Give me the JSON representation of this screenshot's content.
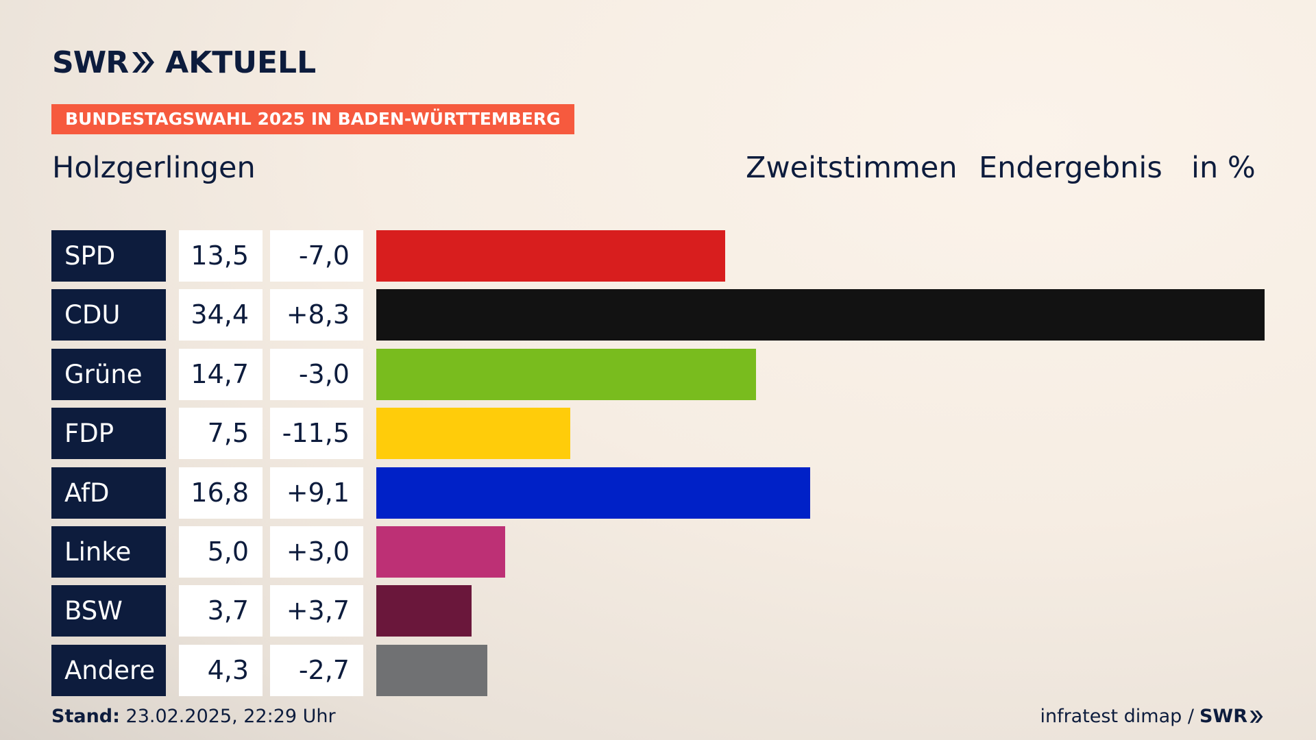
{
  "header": {
    "logo_left": "SWR",
    "logo_right": "AKTUELL",
    "tag": "BUNDESTAGSWAHL 2025 IN BADEN-WÜRTTEMBERG",
    "place": "Holzgerlingen",
    "vote_type": "Zweitstimmen",
    "status": "Endergebnis",
    "unit": "in %"
  },
  "chart_data": {
    "type": "bar",
    "orientation": "horizontal",
    "categories": [
      "SPD",
      "CDU",
      "Grüne",
      "FDP",
      "AfD",
      "Linke",
      "BSW",
      "Andere"
    ],
    "values": [
      "13,5",
      "34,4",
      "14,7",
      "7,5",
      "16,8",
      "5,0",
      "3,7",
      "4,3"
    ],
    "numeric_values": [
      13.5,
      34.4,
      14.7,
      7.5,
      16.8,
      5.0,
      3.7,
      4.3
    ],
    "differences": [
      "-7,0",
      "+8,3",
      "-3,0",
      "-11,5",
      "+9,1",
      "+3,0",
      "+3,7",
      "-2,7"
    ],
    "colors": [
      "#d81e1e",
      "#121212",
      "#79bc1e",
      "#ffcc0a",
      "#0021c7",
      "#bd3075",
      "#6a173b",
      "#707173"
    ],
    "xlim": [
      0,
      34.4
    ]
  },
  "footer": {
    "stand_label": "Stand:",
    "stand_value": "23.02.2025, 22:29 Uhr",
    "source": "infratest dimap /",
    "source_brand": "SWR"
  },
  "icons": {
    "logo_chevrons": "double-chevron-right-icon",
    "footer_chevrons": "double-chevron-right-icon"
  }
}
